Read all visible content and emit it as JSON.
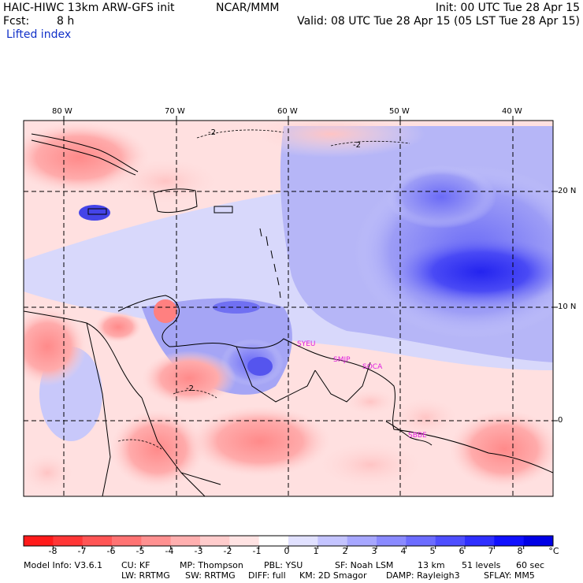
{
  "header": {
    "model_line": "HAIC-HIWC 13km ARW-GFS init",
    "org": "NCAR/MMM",
    "init": "Init: 00 UTC Tue 28 Apr 15",
    "fcst_label": "Fcst:",
    "fcst_value": "8 h",
    "valid": "Valid: 08 UTC Tue 28 Apr 15 (05 LST Tue 28 Apr 15)",
    "field": "Lifted index"
  },
  "map": {
    "lon_labels": [
      "80 W",
      "70 W",
      "60 W",
      "50 W",
      "40 W"
    ],
    "lat_labels": [
      "20 N",
      "10 N",
      "0"
    ],
    "contour_label": "-2",
    "stations": [
      "SYEU",
      "SMJP",
      "SOCA",
      "SBBE"
    ]
  },
  "colorbar": {
    "labels": [
      "-8",
      "-7",
      "-6",
      "-5",
      "-4",
      "-3",
      "-2",
      "-1",
      "0",
      "1",
      "2",
      "3",
      "4",
      "5",
      "6",
      "7",
      "8"
    ],
    "unit": "°C",
    "colors": [
      "#ff1a1a",
      "#ff3636",
      "#ff5555",
      "#ff7373",
      "#ff9191",
      "#ffafaf",
      "#ffcccc",
      "#ffe3e3",
      "#ffffff",
      "#e1e1ff",
      "#c4c4ff",
      "#a7a7ff",
      "#8a8aff",
      "#6c6cff",
      "#4e4eff",
      "#2f2fff",
      "#1010ff",
      "#0000e6"
    ]
  },
  "footer": {
    "line1": [
      "Model Info: V3.6.1",
      "CU: KF",
      "MP: Thompson",
      "PBL: YSU",
      "SF: Noah LSM",
      "13 km",
      "51 levels",
      "60 sec"
    ],
    "line2": [
      "LW: RRTMG",
      "SW: RRTMG",
      "DIFF: full",
      "KM: 2D Smagor",
      "DAMP: Rayleigh3",
      "SFLAY: MM5"
    ]
  }
}
